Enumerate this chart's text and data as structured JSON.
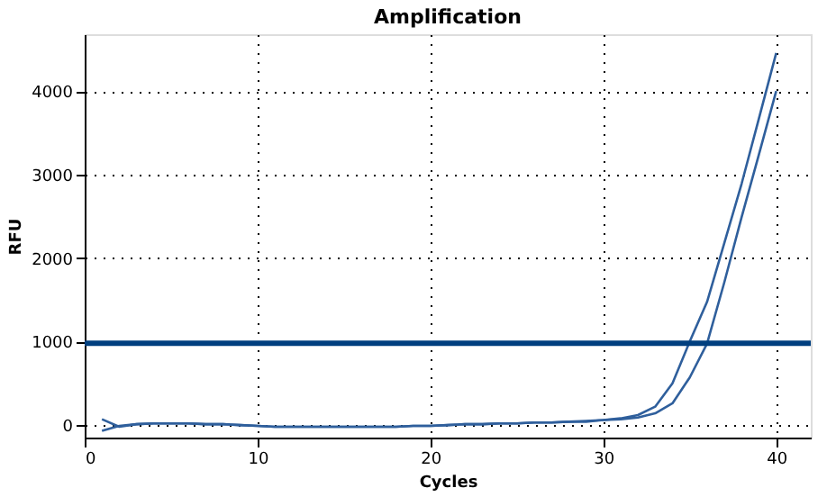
{
  "chart_data": {
    "type": "line",
    "title": "Amplification",
    "xlabel": "Cycles",
    "ylabel": "RFU",
    "x": [
      1,
      2,
      3,
      4,
      5,
      6,
      7,
      8,
      9,
      10,
      11,
      12,
      13,
      14,
      15,
      16,
      17,
      18,
      19,
      20,
      21,
      22,
      23,
      24,
      25,
      26,
      27,
      28,
      29,
      30,
      31,
      32,
      33,
      34,
      35,
      36,
      37,
      38,
      39,
      40
    ],
    "series": [
      {
        "color": "#2f5f9c",
        "values": [
          -70,
          -10,
          10,
          20,
          20,
          20,
          10,
          10,
          0,
          -10,
          -20,
          -20,
          -20,
          -20,
          -20,
          -20,
          -20,
          -20,
          -10,
          -10,
          0,
          10,
          10,
          20,
          20,
          30,
          30,
          40,
          50,
          60,
          80,
          120,
          220,
          500,
          1000,
          1475,
          2180,
          2890,
          3670,
          4455
        ]
      },
      {
        "color": "#2f5f9c",
        "values": [
          70,
          -20,
          10,
          20,
          20,
          20,
          10,
          10,
          0,
          -10,
          -20,
          -20,
          -20,
          -20,
          -20,
          -20,
          -20,
          -20,
          -10,
          -10,
          0,
          10,
          10,
          20,
          20,
          30,
          30,
          40,
          40,
          60,
          70,
          90,
          140,
          260,
          570,
          975,
          1710,
          2490,
          3240,
          4000
        ]
      }
    ],
    "xlim": [
      0,
      42
    ],
    "ylim": [
      -150,
      4680
    ],
    "xticks": [
      0,
      10,
      20,
      30,
      40
    ],
    "yticks": [
      0,
      1000,
      2000,
      3000,
      4000
    ],
    "ref_lines": [
      {
        "axis": "y",
        "value": 980,
        "color": "#003f7f"
      }
    ],
    "grid": true,
    "legend": false,
    "marker": "none",
    "line_style": "solid"
  }
}
